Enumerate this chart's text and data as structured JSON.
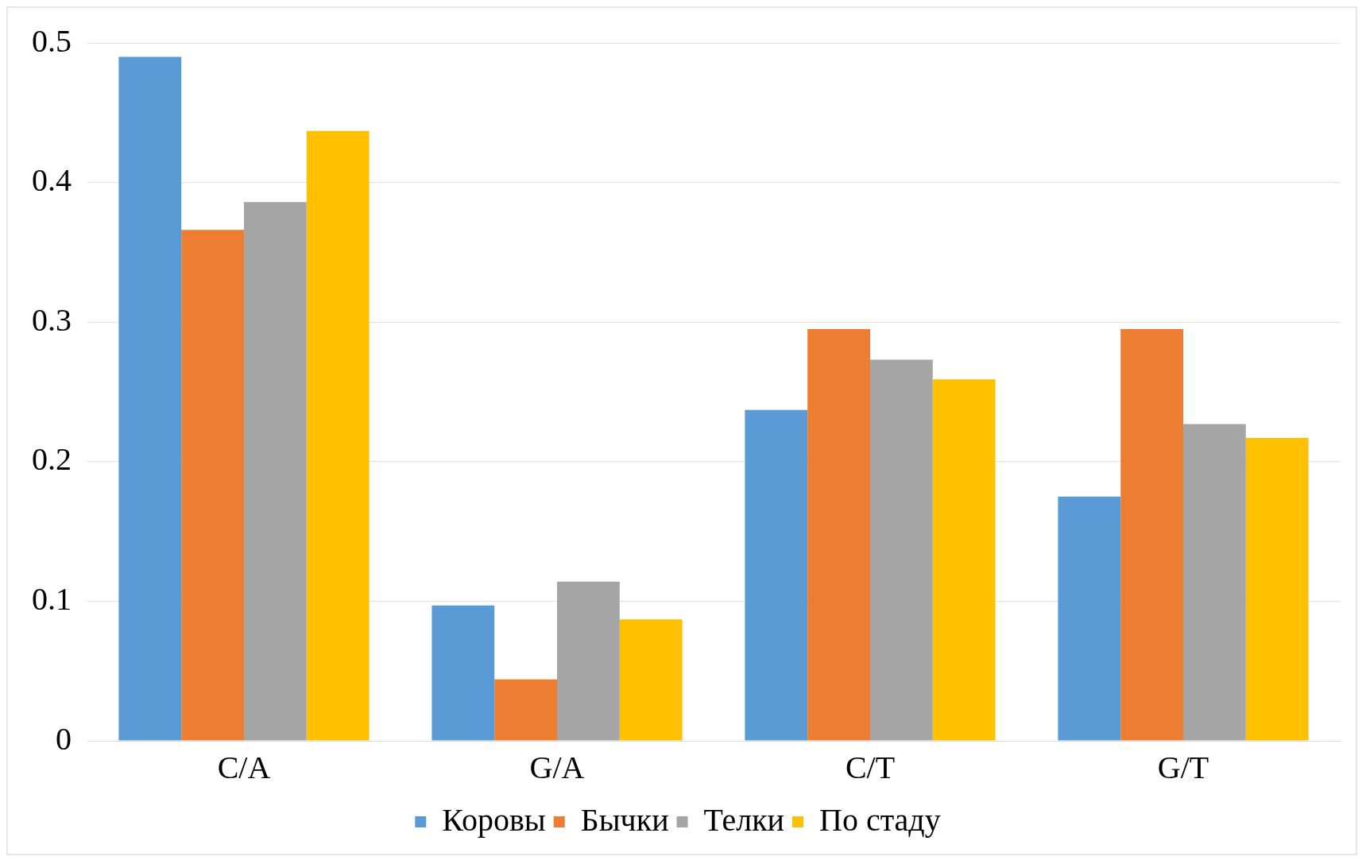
{
  "chart_data": {
    "type": "bar",
    "categories": [
      "C/A",
      "G/A",
      "C/T",
      "G/T"
    ],
    "series": [
      {
        "name": "Коровы",
        "color": "#5b9bd5",
        "values": [
          0.49,
          0.097,
          0.237,
          0.175
        ]
      },
      {
        "name": "Бычки",
        "color": "#ed7d31",
        "values": [
          0.366,
          0.044,
          0.295,
          0.295
        ]
      },
      {
        "name": "Телки",
        "color": "#a5a5a5",
        "values": [
          0.386,
          0.114,
          0.273,
          0.227
        ]
      },
      {
        "name": "По стаду",
        "color": "#ffc000",
        "values": [
          0.437,
          0.087,
          0.259,
          0.217
        ]
      }
    ],
    "ylim": [
      0,
      0.5
    ],
    "yticks": [
      0,
      0.1,
      0.2,
      0.3,
      0.4,
      0.5
    ],
    "grid": "y",
    "legend": "bottom"
  }
}
